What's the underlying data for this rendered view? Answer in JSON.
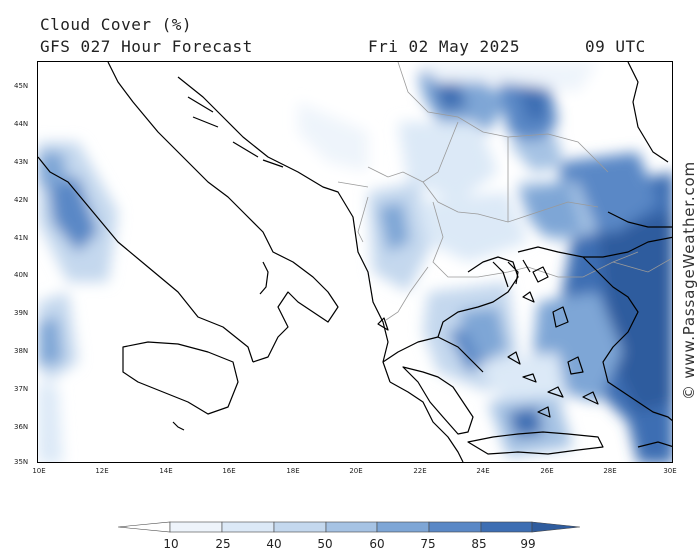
{
  "header": {
    "title": "Cloud Cover (%)",
    "subtitle": "GFS 027 Hour Forecast",
    "date": "Fri 02 May 2025",
    "time": "09 UTC"
  },
  "watermark": "© www.PassageWeather.com",
  "map": {
    "lat_labels": [
      "45N",
      "44N",
      "43N",
      "42N",
      "41N",
      "40N",
      "39N",
      "38N",
      "37N",
      "36N",
      "35N"
    ],
    "lon_labels": [
      "10E",
      "12E",
      "14E",
      "16E",
      "18E",
      "20E",
      "22E",
      "24E",
      "26E",
      "28E",
      "30E"
    ],
    "land_outline_color": "#000000",
    "border_color": "#9a9a9a"
  },
  "legend": {
    "values": [
      "10",
      "25",
      "40",
      "50",
      "60",
      "75",
      "85",
      "99"
    ],
    "colors": [
      "#ffffff",
      "#eef4fb",
      "#dce9f7",
      "#c4d8ee",
      "#a6c3e4",
      "#7ea6d6",
      "#5a88c6",
      "#3d6eb3",
      "#2f5c9e"
    ]
  }
}
